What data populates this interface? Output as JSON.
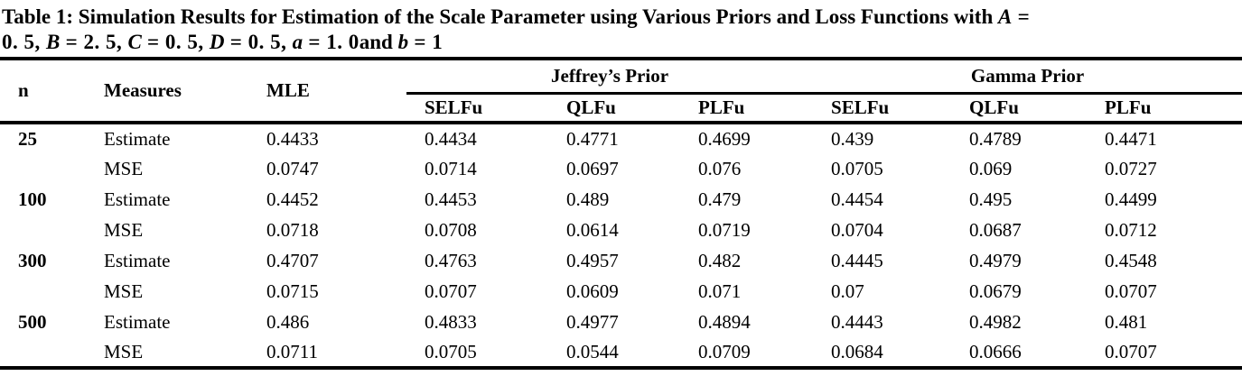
{
  "colors": {
    "text": "#000000",
    "background": "#ffffff"
  },
  "title": {
    "line1_segments": [
      {
        "text": "Table 1: Simulation Results for Estimation of the Scale Parameter using Various Priors and Loss Functions with ",
        "style": "plain"
      },
      {
        "text": "A",
        "style": "var"
      },
      {
        "text": " =",
        "style": "math"
      }
    ],
    "line2_segments": [
      {
        "text": "0. 5, ",
        "style": "math"
      },
      {
        "text": "B",
        "style": "var"
      },
      {
        "text": " = 2. 5, ",
        "style": "math"
      },
      {
        "text": "C",
        "style": "var"
      },
      {
        "text": " = 0. 5, ",
        "style": "math"
      },
      {
        "text": "D",
        "style": "var"
      },
      {
        "text": " = 0. 5, ",
        "style": "math"
      },
      {
        "text": "a",
        "style": "var"
      },
      {
        "text": " = 1. 0",
        "style": "math"
      },
      {
        "text": "and ",
        "style": "plain"
      },
      {
        "text": "b",
        "style": "var"
      },
      {
        "text": " = 1",
        "style": "math"
      }
    ]
  },
  "table": {
    "stub_headers": {
      "n": "n",
      "measures": "Measures",
      "mle": "MLE"
    },
    "group_headers": [
      "Jeffrey’s Prior",
      "Gamma Prior"
    ],
    "sub_headers": [
      "SELFu",
      "QLFu",
      "PLFu",
      "SELFu",
      "QLFu",
      "PLFu"
    ],
    "rows": [
      {
        "n": "25",
        "measure": "Estimate",
        "values": [
          "0.4433",
          "0.4434",
          "0.4771",
          "0.4699",
          "0.439",
          "0.4789",
          "0.4471"
        ]
      },
      {
        "n": "",
        "measure": "MSE",
        "values": [
          "0.0747",
          "0.0714",
          "0.0697",
          "0.076",
          "0.0705",
          "0.069",
          "0.0727"
        ]
      },
      {
        "n": "100",
        "measure": "Estimate",
        "values": [
          "0.4452",
          "0.4453",
          "0.489",
          "0.479",
          "0.4454",
          "0.495",
          "0.4499"
        ]
      },
      {
        "n": "",
        "measure": "MSE",
        "values": [
          "0.0718",
          "0.0708",
          "0.0614",
          "0.0719",
          "0.0704",
          "0.0687",
          "0.0712"
        ]
      },
      {
        "n": "300",
        "measure": "Estimate",
        "values": [
          "0.4707",
          "0.4763",
          "0.4957",
          "0.482",
          "0.4445",
          "0.4979",
          "0.4548"
        ]
      },
      {
        "n": "",
        "measure": "MSE",
        "values": [
          "0.0715",
          "0.0707",
          "0.0609",
          "0.071",
          "0.07",
          "0.0679",
          "0.0707"
        ]
      },
      {
        "n": "500",
        "measure": "Estimate",
        "values": [
          "0.486",
          "0.4833",
          "0.4977",
          "0.4894",
          "0.4443",
          "0.4982",
          "0.481"
        ]
      },
      {
        "n": "",
        "measure": "MSE",
        "values": [
          "0.0711",
          "0.0705",
          "0.0544",
          "0.0709",
          "0.0684",
          "0.0666",
          "0.0707"
        ]
      }
    ]
  }
}
